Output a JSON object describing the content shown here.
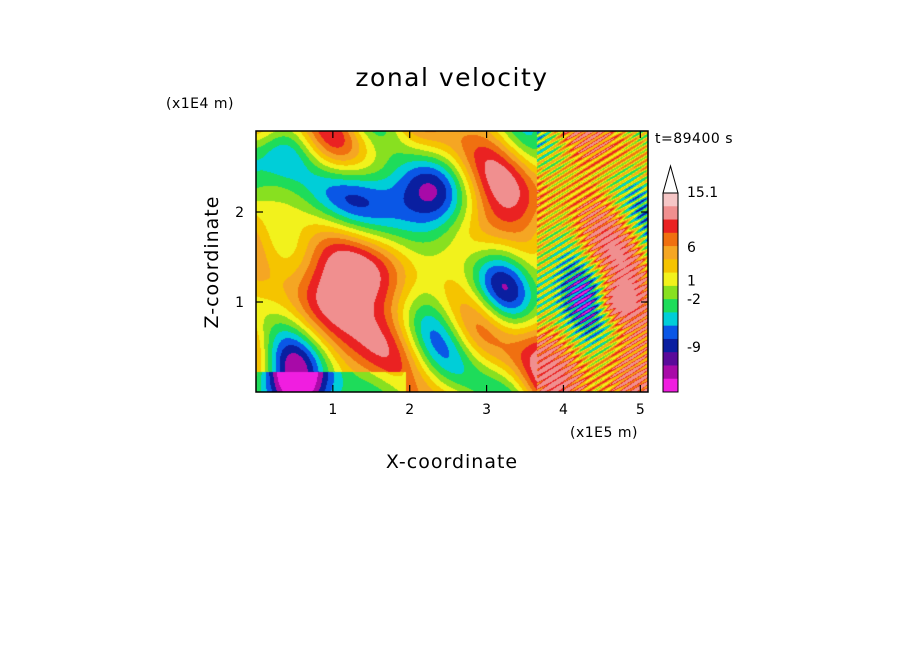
{
  "chart_data": {
    "type": "heatmap",
    "title": "zonal velocity",
    "xlabel": "X-coordinate",
    "ylabel": "Z-coordinate",
    "x_unit": "(x1E5 m)",
    "y_unit": "(x1E4 m)",
    "time_label": "t=89400 s",
    "x_ticks": [
      "1",
      "2",
      "3",
      "4",
      "5"
    ],
    "y_ticks": [
      "1",
      "2"
    ],
    "xlim": [
      0,
      5.1
    ],
    "ylim": [
      0,
      2.9
    ],
    "colorbar": {
      "labels": [
        "15.1",
        "6",
        "1",
        "-2",
        "-9"
      ],
      "levels_top_to_bottom": [
        {
          "color": "#f6c6c6"
        },
        {
          "color": "#f08f8f"
        },
        {
          "color": "#ea2222"
        },
        {
          "color": "#f07010"
        },
        {
          "color": "#f5a623"
        },
        {
          "color": "#f5c400"
        },
        {
          "color": "#f2f21c"
        },
        {
          "color": "#88e020"
        },
        {
          "color": "#1edc5a"
        },
        {
          "color": "#00ced8"
        },
        {
          "color": "#0a57e6"
        },
        {
          "color": "#0a1fa0"
        },
        {
          "color": "#5a0a9a"
        },
        {
          "color": "#a80aa8"
        },
        {
          "color": "#f01ee0"
        }
      ]
    },
    "field_palette": [
      "#f01ee0",
      "#a80aa8",
      "#0a1fa0",
      "#0a57e6",
      "#00ced8",
      "#1edc5a",
      "#88e020",
      "#f2f21c",
      "#f5c400",
      "#f5a623",
      "#f07010",
      "#ea2222",
      "#f08f8f"
    ]
  }
}
